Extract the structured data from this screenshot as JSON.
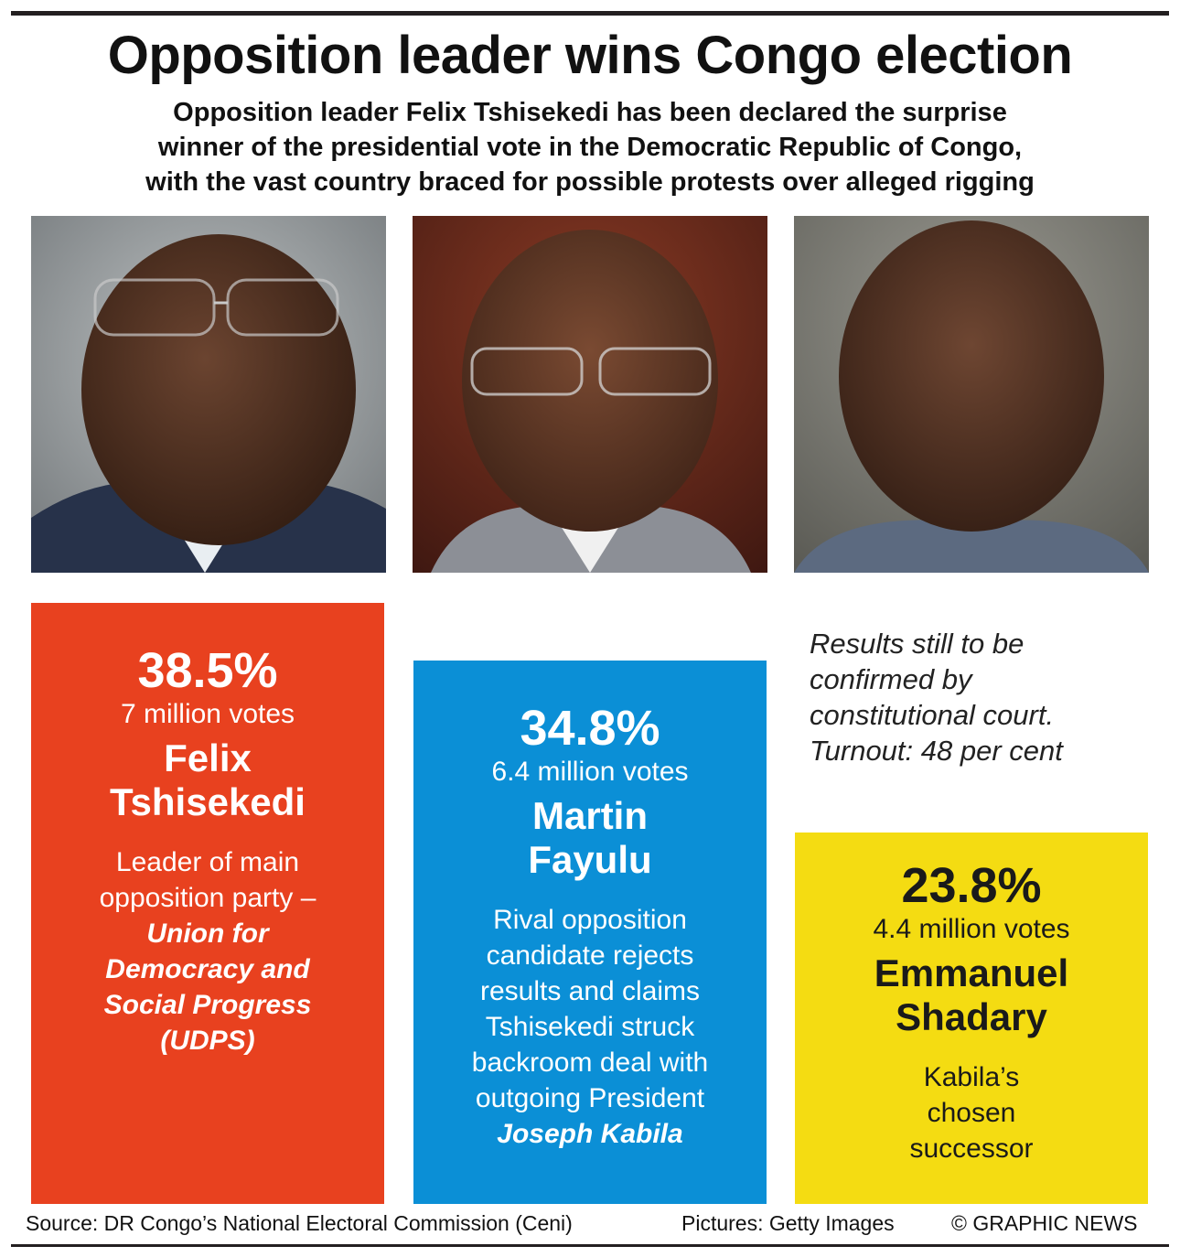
{
  "headline": "Opposition leader wins Congo election",
  "intro": [
    "Opposition leader Felix Tshisekedi has been declared the surprise",
    "winner of the presidential vote in the Democratic Republic of Congo,",
    "with the vast country braced for possible protests over alleged rigging"
  ],
  "note": [
    "Results still to be",
    "confirmed by",
    "constitutional court.",
    "Turnout: 48 per cent"
  ],
  "footer": {
    "source": "Source: DR Congo’s National Electoral Commission (Ceni)",
    "pictures": "Pictures: Getty Images",
    "copyright": "© GRAPHIC NEWS"
  },
  "colors": {
    "tshisekedi": "#e8411f",
    "fayulu": "#0b8fd6",
    "shadary": "#f4dc12",
    "rule": "#231f20"
  },
  "chart_data": {
    "type": "bar",
    "title": "",
    "xlabel": "",
    "ylabel": "",
    "ylim": [
      0,
      40
    ],
    "categories": [
      "Felix Tshisekedi",
      "Martin Fayulu",
      "Emmanuel Shadary"
    ],
    "values": [
      38.5,
      34.8,
      23.8
    ],
    "bars": [
      {
        "pct_label": "38.5%",
        "votes_label": "7 million votes",
        "name_lines": [
          "Felix",
          "Tshisekedi"
        ],
        "desc_lines": [
          "Leader of main",
          "opposition party –"
        ],
        "desc_em_lines": [
          "Union for",
          "Democracy and",
          "Social Progress",
          "(UDPS)"
        ],
        "color": "#e8411f",
        "text_color": "#ffffff"
      },
      {
        "pct_label": "34.8%",
        "votes_label": "6.4 million votes",
        "name_lines": [
          "Martin",
          "Fayulu"
        ],
        "desc_lines": [
          "Rival opposition",
          "candidate rejects",
          "results and claims",
          "Tshisekedi struck",
          "backroom deal with",
          "outgoing President"
        ],
        "desc_em_lines": [
          "Joseph Kabila"
        ],
        "color": "#0b8fd6",
        "text_color": "#ffffff"
      },
      {
        "pct_label": "23.8%",
        "votes_label": "4.4 million votes",
        "name_lines": [
          "Emmanuel",
          "Shadary"
        ],
        "desc_lines": [
          "Kabila’s",
          "chosen",
          "successor"
        ],
        "desc_em_lines": [],
        "color": "#f4dc12",
        "text_color": "#1a1a1a"
      }
    ]
  }
}
